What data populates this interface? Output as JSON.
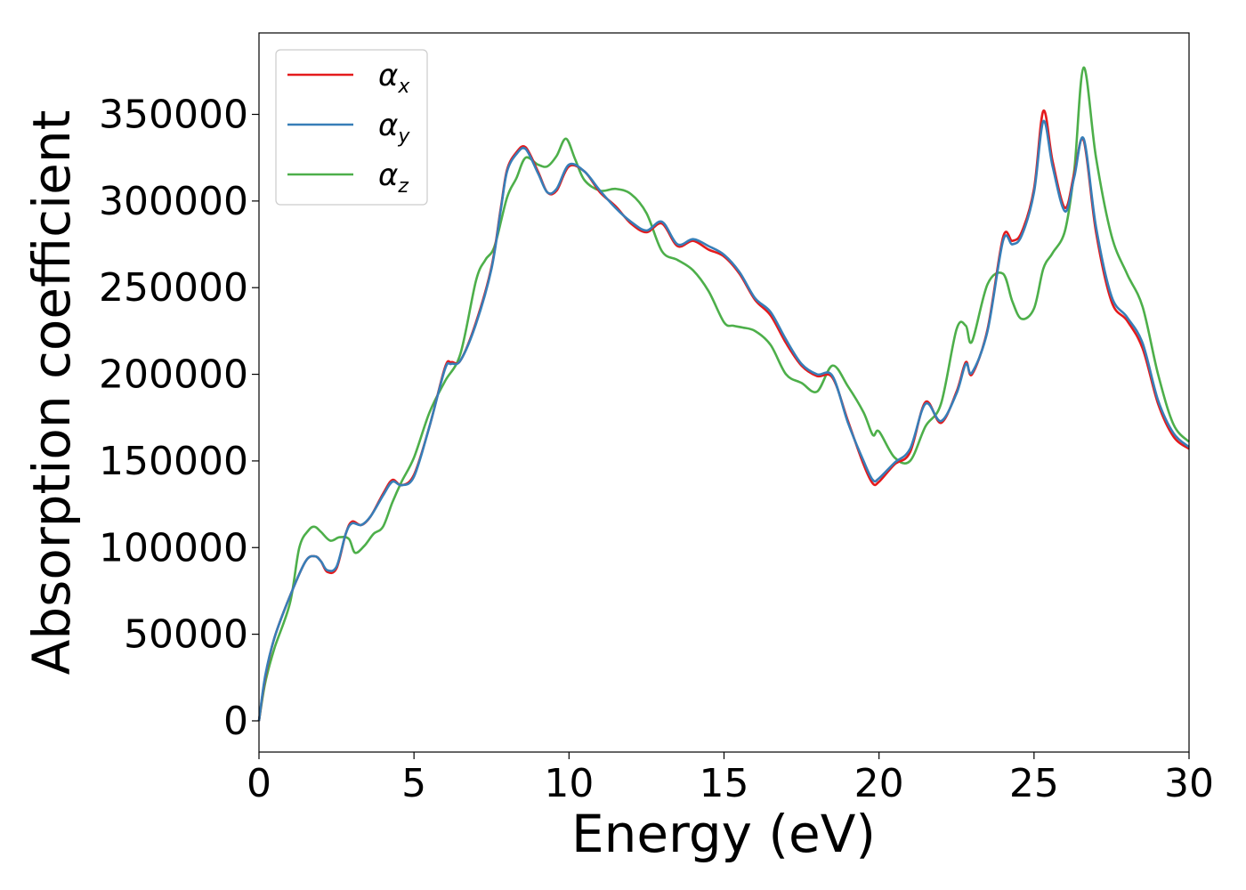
{
  "chart_data": {
    "type": "line",
    "xlabel": "Energy (eV)",
    "ylabel": "Absorption coefficient",
    "xlim": [
      0,
      30
    ],
    "ylim": [
      -18000,
      397000
    ],
    "xticks": [
      0,
      5,
      10,
      15,
      20,
      25,
      30
    ],
    "xtick_labels": [
      "0",
      "5",
      "10",
      "15",
      "20",
      "25",
      "30"
    ],
    "yticks": [
      0,
      50000,
      100000,
      150000,
      200000,
      250000,
      300000,
      350000
    ],
    "ytick_labels": [
      "0",
      "50000",
      "100000",
      "150000",
      "200000",
      "250000",
      "300000",
      "350000"
    ],
    "grid": false,
    "legend_position": "top-left",
    "series": [
      {
        "name": "αx",
        "symbol": "α",
        "subscript": "x",
        "color": "#e41a1c",
        "x": [
          0,
          0.2,
          0.5,
          1,
          1.5,
          1.8,
          2,
          2.2,
          2.5,
          2.8,
          3,
          3.3,
          3.6,
          4,
          4.3,
          4.6,
          5,
          5.5,
          6,
          6.2,
          6.5,
          7,
          7.5,
          7.8,
          8,
          8.3,
          8.6,
          9,
          9.3,
          9.6,
          10,
          10.5,
          11,
          11.5,
          12,
          12.5,
          13,
          13.5,
          14,
          14.5,
          15,
          15.5,
          16,
          16.5,
          17,
          17.5,
          18,
          18.5,
          19,
          19.5,
          19.8,
          20,
          20.5,
          21,
          21.5,
          22,
          22.5,
          22.8,
          23,
          23.5,
          24,
          24.3,
          24.6,
          25,
          25.3,
          25.6,
          26,
          26.3,
          26.6,
          27,
          27.5,
          28,
          28.5,
          29,
          29.5,
          30
        ],
        "y": [
          0,
          25000,
          48000,
          72000,
          92000,
          95000,
          92000,
          86000,
          88000,
          108000,
          115000,
          113000,
          118000,
          131000,
          139000,
          136000,
          142000,
          170000,
          204000,
          207000,
          208000,
          230000,
          262000,
          296000,
          318000,
          328000,
          331000,
          317000,
          305000,
          306000,
          320000,
          317000,
          305000,
          297000,
          287000,
          282000,
          287000,
          274000,
          277000,
          272000,
          268000,
          258000,
          243000,
          234000,
          218000,
          205000,
          199000,
          198000,
          173000,
          148000,
          137000,
          138000,
          148000,
          155000,
          184000,
          172000,
          190000,
          207000,
          200000,
          226000,
          279000,
          277000,
          282000,
          307000,
          352000,
          323000,
          296000,
          316000,
          335000,
          282000,
          242000,
          231000,
          215000,
          183000,
          164000,
          157000
        ]
      },
      {
        "name": "αy",
        "symbol": "α",
        "subscript": "y",
        "color": "#377eb8",
        "x": [
          0,
          0.2,
          0.5,
          1,
          1.5,
          1.8,
          2,
          2.2,
          2.5,
          2.8,
          3,
          3.3,
          3.6,
          4,
          4.3,
          4.6,
          5,
          5.5,
          6,
          6.2,
          6.5,
          7,
          7.5,
          7.8,
          8,
          8.3,
          8.6,
          9,
          9.3,
          9.6,
          10,
          10.5,
          11,
          11.5,
          12,
          12.5,
          13,
          13.5,
          14,
          14.5,
          15,
          15.5,
          16,
          16.5,
          17,
          17.5,
          18,
          18.5,
          19,
          19.5,
          19.8,
          20,
          20.5,
          21,
          21.5,
          22,
          22.5,
          22.8,
          23,
          23.5,
          24,
          24.3,
          24.6,
          25,
          25.3,
          25.6,
          26,
          26.3,
          26.6,
          27,
          27.5,
          28,
          28.5,
          29,
          29.5,
          30
        ],
        "y": [
          0,
          26000,
          48000,
          72000,
          92000,
          95000,
          92000,
          87000,
          89000,
          108000,
          114000,
          113000,
          118000,
          130000,
          138000,
          136000,
          141000,
          170000,
          203000,
          206000,
          208000,
          229000,
          261000,
          295000,
          317000,
          327000,
          330000,
          316000,
          305000,
          307000,
          321000,
          317000,
          306000,
          296000,
          288000,
          283000,
          288000,
          275000,
          278000,
          274000,
          269000,
          259000,
          244000,
          236000,
          220000,
          206000,
          200000,
          199000,
          172000,
          150000,
          139000,
          140000,
          149000,
          157000,
          183000,
          173000,
          189000,
          206000,
          201000,
          225000,
          277000,
          275000,
          280000,
          305000,
          346000,
          320000,
          294000,
          314000,
          336000,
          285000,
          245000,
          233000,
          218000,
          185000,
          166000,
          158000
        ]
      },
      {
        "name": "αz",
        "symbol": "α",
        "subscript": "z",
        "color": "#4daf4a",
        "x": [
          0,
          0.2,
          0.5,
          1,
          1.3,
          1.6,
          1.8,
          2,
          2.3,
          2.6,
          2.9,
          3.1,
          3.4,
          3.7,
          4,
          4.3,
          4.6,
          5,
          5.5,
          6,
          6.5,
          7,
          7.3,
          7.6,
          8,
          8.3,
          8.6,
          9,
          9.3,
          9.6,
          9.9,
          10.2,
          10.5,
          11,
          11.5,
          12,
          12.5,
          13,
          13.5,
          14,
          14.5,
          15,
          15.3,
          15.6,
          16,
          16.5,
          17,
          17.5,
          18,
          18.5,
          19,
          19.5,
          19.8,
          20,
          20.5,
          21,
          21.5,
          22,
          22.5,
          22.8,
          23,
          23.5,
          24,
          24.3,
          24.6,
          25,
          25.3,
          25.6,
          26,
          26.3,
          26.6,
          27,
          27.5,
          28,
          28.5,
          29,
          29.5,
          30
        ],
        "y": [
          0,
          22000,
          42000,
          68000,
          100000,
          110000,
          112000,
          109000,
          104000,
          106000,
          105000,
          97000,
          101000,
          108000,
          112000,
          126000,
          138000,
          152000,
          178000,
          196000,
          212000,
          254000,
          266000,
          274000,
          302000,
          313000,
          325000,
          321000,
          320000,
          326000,
          336000,
          324000,
          312000,
          306000,
          307000,
          304000,
          293000,
          271000,
          266000,
          260000,
          248000,
          230000,
          228000,
          227000,
          225000,
          217000,
          200000,
          195000,
          190000,
          205000,
          193000,
          178000,
          165000,
          167000,
          152000,
          150000,
          170000,
          183000,
          226000,
          228000,
          219000,
          252000,
          258000,
          242000,
          232000,
          238000,
          261000,
          270000,
          283000,
          318000,
          377000,
          325000,
          280000,
          258000,
          239000,
          200000,
          171000,
          161000
        ]
      }
    ]
  }
}
